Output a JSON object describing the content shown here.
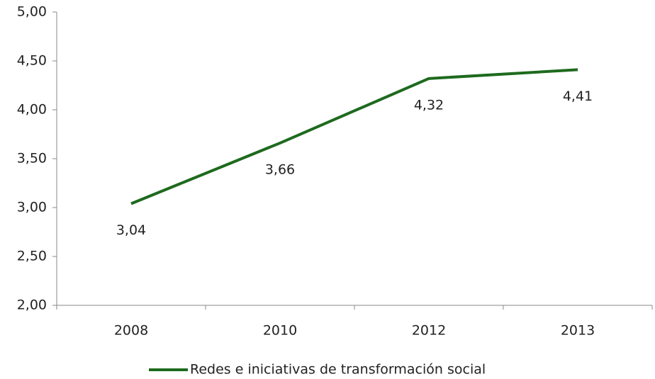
{
  "chart_data": {
    "type": "line",
    "categories": [
      "2008",
      "2010",
      "2012",
      "2013"
    ],
    "series": [
      {
        "name": "Redes e iniciativas de transformación social",
        "color": "#1e6a1e",
        "values": [
          3.04,
          3.66,
          4.32,
          4.41
        ],
        "value_labels": [
          "3,04",
          "3,66",
          "4,32",
          "4,41"
        ]
      }
    ],
    "ylim": [
      2,
      5
    ],
    "yticks": [
      {
        "value": 2,
        "label": "2,00"
      },
      {
        "value": 2.5,
        "label": "2,50"
      },
      {
        "value": 3,
        "label": "3,00"
      },
      {
        "value": 3.5,
        "label": "3,50"
      },
      {
        "value": 4,
        "label": "4,00"
      },
      {
        "value": 4.5,
        "label": "4,50"
      },
      {
        "value": 5,
        "label": "5,00"
      }
    ],
    "grid": false,
    "legend": "bottom"
  }
}
